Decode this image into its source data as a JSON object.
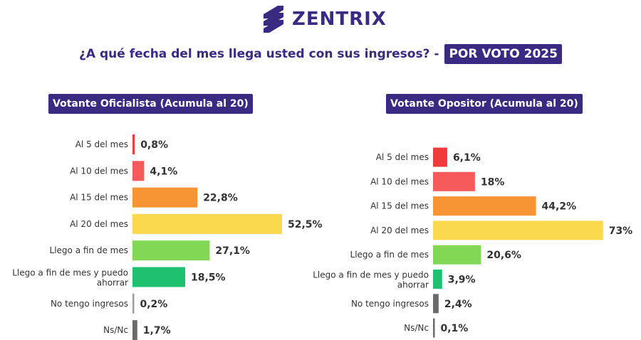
{
  "brand": {
    "name": "ZENTRIX",
    "color": "#3b2a82",
    "logo_icon": "zentrix-logo-icon"
  },
  "headline": {
    "question": "¿A qué fecha del mes llega usted con sus ingresos?  -",
    "tag": "POR VOTO 2025"
  },
  "chart_data": [
    {
      "type": "bar",
      "orientation": "horizontal",
      "title": "Votante Oficialista (Acumula al 20)",
      "categories": [
        "Al 5 del mes",
        "Al 10 del mes",
        "Al 15 del mes",
        "Al 20 del mes",
        "Llego a fin de mes",
        "Llego a fin de mes y puedo ahorrar",
        "No tengo ingresos",
        "Ns/Nc"
      ],
      "values": [
        0.8,
        4.1,
        22.8,
        52.5,
        27.1,
        18.5,
        0.2,
        1.7
      ],
      "value_labels": [
        "0,8%",
        "4,1%",
        "22,8%",
        "52,5%",
        "27,1%",
        "18,5%",
        "0,2%",
        "1,7%"
      ],
      "colors": [
        "#ef3b3b",
        "#f65a5a",
        "#f79534",
        "#fbd94f",
        "#82d854",
        "#1fc06f",
        "#9c9c9c",
        "#6b6b6b"
      ],
      "xlim": [
        0,
        73
      ],
      "grid": false,
      "legend": "none"
    },
    {
      "type": "bar",
      "orientation": "horizontal",
      "title": "Votante Opositor (Acumula al 20)",
      "categories": [
        "Al 5 del mes",
        "Al 10 del mes",
        "Al 15 del mes",
        "Al 20 del mes",
        "Llego a fin de mes",
        "Llego a fin de mes y puedo ahorrar",
        "No tengo ingresos",
        "Ns/Nc"
      ],
      "values": [
        6.1,
        18,
        44.2,
        73,
        20.6,
        3.9,
        2.4,
        0.1
      ],
      "value_labels": [
        "6,1%",
        "18%",
        "44,2%",
        "73%",
        "20,6%",
        "3,9%",
        "2,4%",
        "0,1%"
      ],
      "colors": [
        "#ef3b3b",
        "#f65a5a",
        "#f79534",
        "#fbd94f",
        "#82d854",
        "#1fc06f",
        "#6b6b6b",
        "#6b6b6b"
      ],
      "xlim": [
        0,
        73
      ],
      "grid": false,
      "legend": "none"
    }
  ]
}
